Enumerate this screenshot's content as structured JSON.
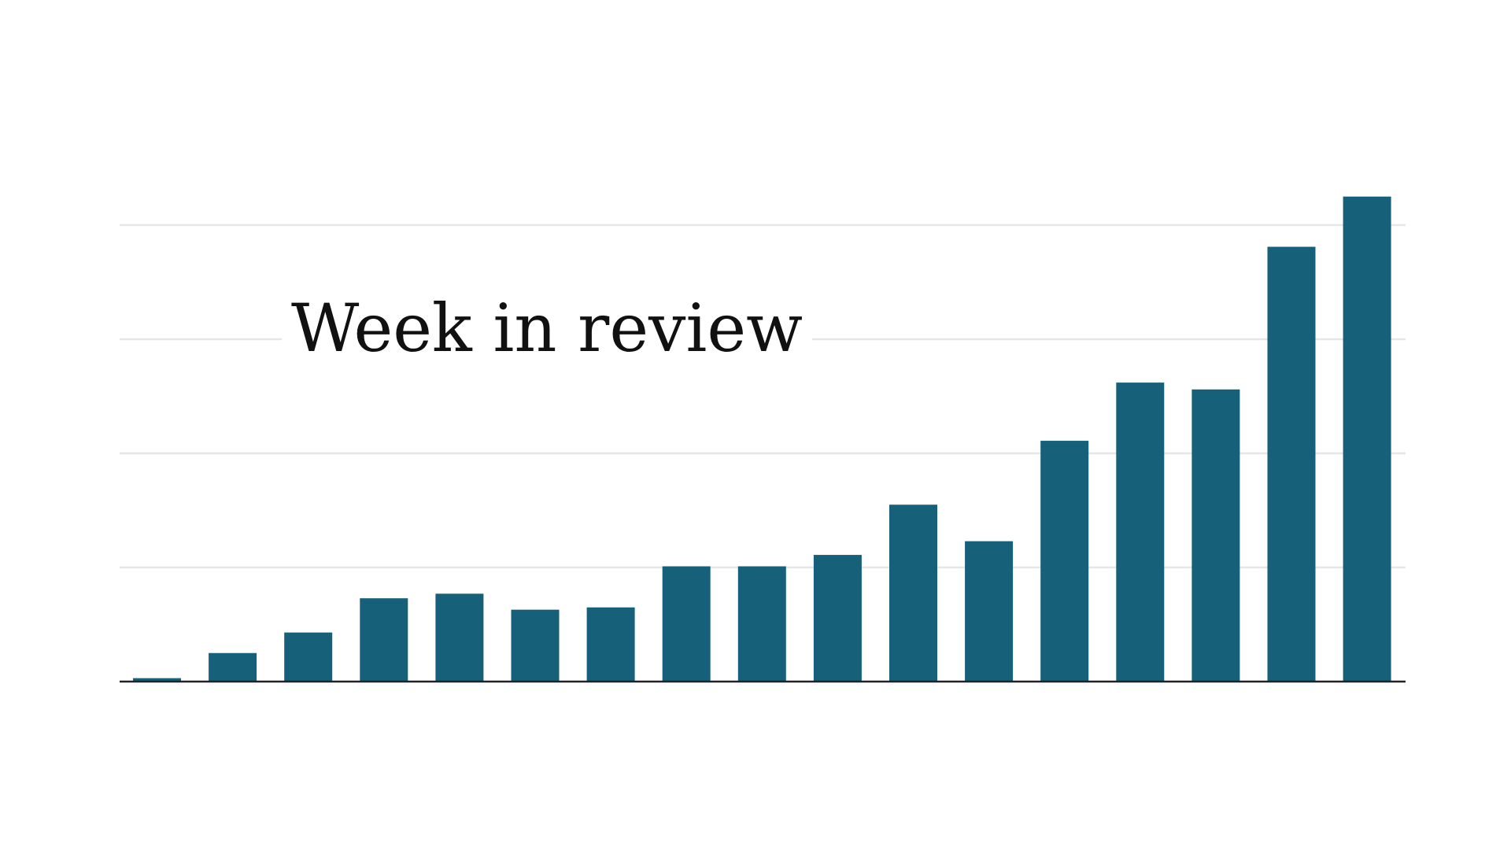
{
  "chart_data": {
    "type": "bar",
    "title": "Week in review",
    "xlabel": "",
    "ylabel": "",
    "values": [
      0.03,
      0.25,
      0.43,
      0.73,
      0.77,
      0.63,
      0.65,
      1.01,
      1.01,
      1.11,
      1.55,
      1.23,
      2.11,
      2.62,
      2.56,
      3.81,
      4.25
    ],
    "ylim": [
      0,
      4.3
    ],
    "gridlines": [
      1,
      2,
      3,
      4
    ],
    "grid": true,
    "legend": "none",
    "bar_color": "#17607a",
    "grid_color": "#e6e6e6",
    "axis_color": "#222222"
  }
}
